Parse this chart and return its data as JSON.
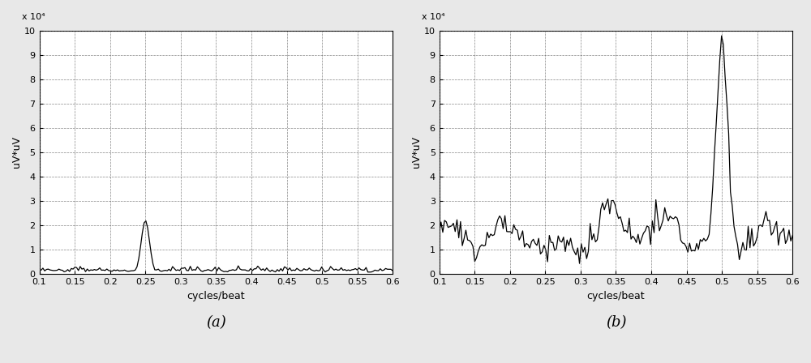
{
  "xlim": [
    0.1,
    0.6
  ],
  "ylim": [
    0,
    100000
  ],
  "yticks": [
    0,
    10000,
    20000,
    30000,
    40000,
    50000,
    60000,
    70000,
    80000,
    90000,
    100000
  ],
  "ytick_labels": [
    "0",
    "1",
    "2",
    "3",
    "4",
    "5",
    "6",
    "7",
    "8",
    "9",
    "10"
  ],
  "xticks": [
    0.1,
    0.15,
    0.2,
    0.25,
    0.3,
    0.35,
    0.4,
    0.45,
    0.5,
    0.55,
    0.6
  ],
  "xtick_labels": [
    "0.1",
    "0.15",
    "0.2",
    "0.25",
    "0.3",
    "0.35",
    "0.4",
    "0.45",
    "0.5",
    "0.55",
    "0.6"
  ],
  "xlabel": "cycles/beat",
  "ylabel": "uV*uV",
  "exponent_label": "x 10⁴",
  "label_a": "(a)",
  "label_b": "(b)",
  "line_color": "#000000",
  "bg_color": "#ffffff",
  "grid_color": "#555555",
  "fig_bg": "#e8e8e8"
}
